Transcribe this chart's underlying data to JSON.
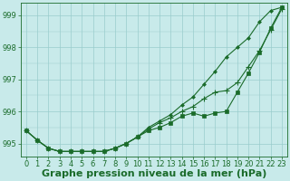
{
  "xlabel": "Graphe pression niveau de la mer (hPa)",
  "hours": [
    0,
    1,
    2,
    3,
    4,
    5,
    6,
    7,
    8,
    9,
    10,
    11,
    12,
    13,
    14,
    15,
    16,
    17,
    18,
    19,
    20,
    21,
    22,
    23
  ],
  "line1": [
    995.4,
    995.1,
    994.85,
    994.75,
    994.75,
    994.75,
    994.75,
    994.75,
    994.85,
    995.0,
    995.2,
    995.4,
    995.5,
    995.65,
    995.85,
    995.95,
    995.85,
    995.95,
    996.0,
    996.6,
    997.2,
    997.85,
    998.6,
    999.25
  ],
  "line2": [
    995.4,
    995.1,
    994.85,
    994.75,
    994.75,
    994.75,
    994.75,
    994.75,
    994.85,
    995.0,
    995.2,
    995.45,
    995.65,
    995.8,
    996.0,
    996.15,
    996.4,
    996.6,
    996.65,
    996.9,
    997.4,
    997.9,
    998.55,
    999.2
  ],
  "line3": [
    995.4,
    995.1,
    994.85,
    994.75,
    994.75,
    994.75,
    994.75,
    994.75,
    994.85,
    995.0,
    995.2,
    995.5,
    995.7,
    995.9,
    996.2,
    996.45,
    996.85,
    997.25,
    997.7,
    998.0,
    998.3,
    998.8,
    999.15,
    999.25
  ],
  "bg_color": "#c8eaea",
  "grid_color": "#99cccc",
  "line_color": "#1a6b2a",
  "ylim": [
    994.6,
    999.4
  ],
  "yticks": [
    995,
    996,
    997,
    998,
    999
  ],
  "yminor_step": 0.5,
  "xlim": [
    -0.5,
    23.5
  ],
  "xticks": [
    0,
    1,
    2,
    3,
    4,
    5,
    6,
    7,
    8,
    9,
    10,
    11,
    12,
    13,
    14,
    15,
    16,
    17,
    18,
    19,
    20,
    21,
    22,
    23
  ],
  "linewidth": 0.8,
  "markersize_sq": 2.5,
  "markersize_plus": 4,
  "markersize_dia": 2.0,
  "xlabel_fontsize": 8,
  "tick_fontsize": 6,
  "xlabel_color": "#1a6b2a",
  "tick_color": "#1a6b2a",
  "axis_color": "#1a6b2a"
}
